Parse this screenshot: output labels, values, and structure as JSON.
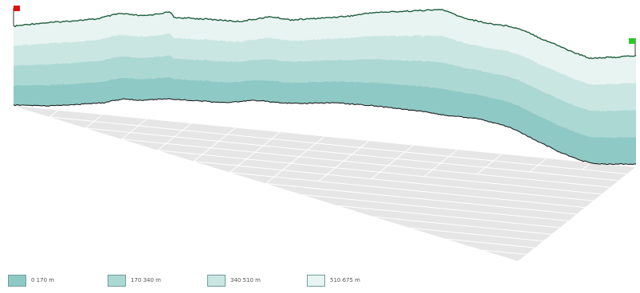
{
  "chart_data": {
    "type": "area",
    "title": "",
    "xlabel": "",
    "ylabel": "",
    "legend_position": "bottom-left",
    "grid": true,
    "series": [
      {
        "name": "0 170 m",
        "color": "#8ec9c5"
      },
      {
        "name": "170 340 m",
        "color": "#acd8d4"
      },
      {
        "name": "340 510 m",
        "color": "#cae6e3"
      },
      {
        "name": "510 675 m",
        "color": "#e8f4f2"
      }
    ],
    "start_marker_color": "#dd1111",
    "end_marker_color": "#22cc22",
    "profile_line_color": "#1f5e3e",
    "ground_line_color": "#222222",
    "grid_color": "#ffffff",
    "plane_color": "#e6e6e6"
  }
}
